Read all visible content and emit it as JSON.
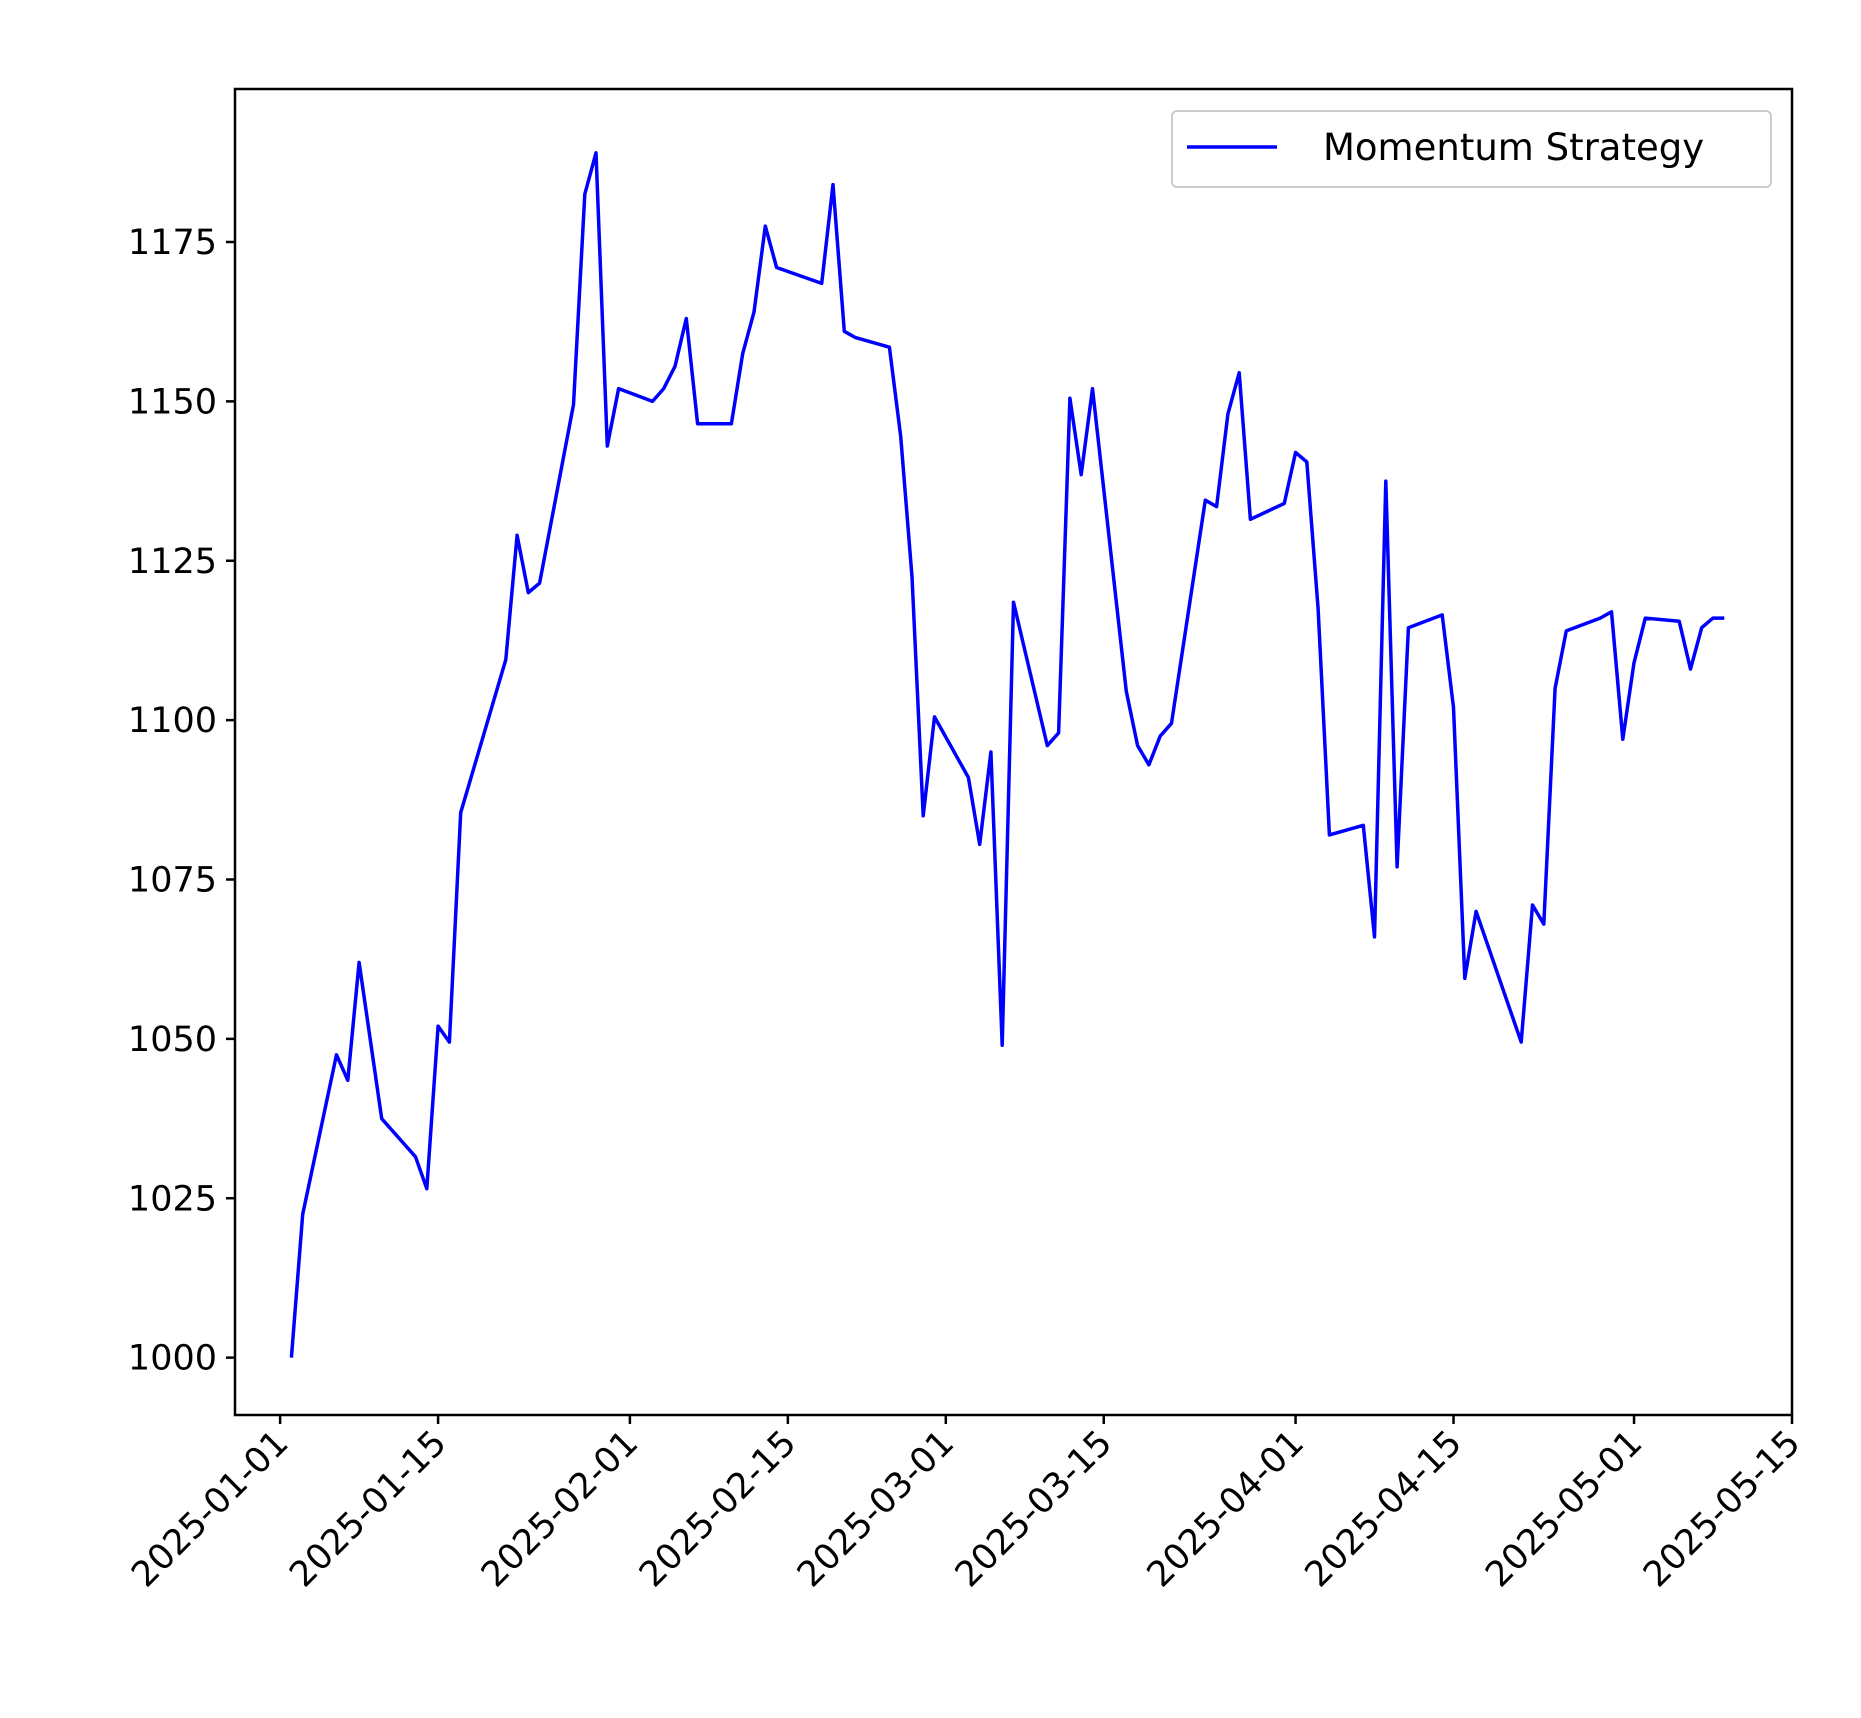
{
  "chart_data": {
    "type": "line",
    "title": "",
    "xlabel": "",
    "ylabel": "",
    "grid": false,
    "legend_position": "top-right",
    "xlim": [
      "2024-12-28",
      "2025-05-15"
    ],
    "ylim": [
      991,
      1199
    ],
    "y_ticks": [
      1000,
      1025,
      1050,
      1075,
      1100,
      1125,
      1150,
      1175
    ],
    "x_ticks": [
      "2025-01-01",
      "2025-01-15",
      "2025-02-01",
      "2025-02-15",
      "2025-03-01",
      "2025-03-15",
      "2025-04-01",
      "2025-04-15",
      "2025-05-01",
      "2025-05-15"
    ],
    "series": [
      {
        "name": "Momentum Strategy",
        "color": "#0000ff",
        "points": [
          [
            "2025-01-02",
            1000.0
          ],
          [
            "2025-01-03",
            1022.5
          ],
          [
            "2025-01-06",
            1047.5
          ],
          [
            "2025-01-07",
            1043.5
          ],
          [
            "2025-01-08",
            1062.0
          ],
          [
            "2025-01-10",
            1037.5
          ],
          [
            "2025-01-13",
            1031.5
          ],
          [
            "2025-01-14",
            1026.5
          ],
          [
            "2025-01-15",
            1052.0
          ],
          [
            "2025-01-16",
            1049.5
          ],
          [
            "2025-01-17",
            1085.5
          ],
          [
            "2025-01-21",
            1109.5
          ],
          [
            "2025-01-22",
            1129.0
          ],
          [
            "2025-01-23",
            1120.0
          ],
          [
            "2025-01-24",
            1121.5
          ],
          [
            "2025-01-27",
            1149.5
          ],
          [
            "2025-01-28",
            1182.5
          ],
          [
            "2025-01-29",
            1189.0
          ],
          [
            "2025-01-30",
            1143.0
          ],
          [
            "2025-01-31",
            1152.0
          ],
          [
            "2025-02-03",
            1150.0
          ],
          [
            "2025-02-04",
            1152.0
          ],
          [
            "2025-02-05",
            1155.5
          ],
          [
            "2025-02-06",
            1163.0
          ],
          [
            "2025-02-07",
            1146.5
          ],
          [
            "2025-02-10",
            1146.5
          ],
          [
            "2025-02-11",
            1157.5
          ],
          [
            "2025-02-12",
            1164.0
          ],
          [
            "2025-02-13",
            1177.5
          ],
          [
            "2025-02-14",
            1171.0
          ],
          [
            "2025-02-18",
            1168.5
          ],
          [
            "2025-02-19",
            1184.0
          ],
          [
            "2025-02-20",
            1161.0
          ],
          [
            "2025-02-21",
            1160.0
          ],
          [
            "2025-02-24",
            1158.5
          ],
          [
            "2025-02-25",
            1144.5
          ],
          [
            "2025-02-26",
            1122.5
          ],
          [
            "2025-02-27",
            1085.0
          ],
          [
            "2025-02-28",
            1100.5
          ],
          [
            "2025-03-03",
            1091.0
          ],
          [
            "2025-03-04",
            1080.5
          ],
          [
            "2025-03-05",
            1095.0
          ],
          [
            "2025-03-06",
            1049.0
          ],
          [
            "2025-03-07",
            1118.5
          ],
          [
            "2025-03-10",
            1096.0
          ],
          [
            "2025-03-11",
            1098.0
          ],
          [
            "2025-03-12",
            1150.5
          ],
          [
            "2025-03-13",
            1138.5
          ],
          [
            "2025-03-14",
            1152.0
          ],
          [
            "2025-03-17",
            1104.5
          ],
          [
            "2025-03-18",
            1096.0
          ],
          [
            "2025-03-19",
            1093.0
          ],
          [
            "2025-03-20",
            1097.5
          ],
          [
            "2025-03-21",
            1099.5
          ],
          [
            "2025-03-24",
            1134.5
          ],
          [
            "2025-03-25",
            1133.5
          ],
          [
            "2025-03-26",
            1148.0
          ],
          [
            "2025-03-27",
            1154.5
          ],
          [
            "2025-03-28",
            1131.5
          ],
          [
            "2025-03-31",
            1134.0
          ],
          [
            "2025-04-01",
            1142.0
          ],
          [
            "2025-04-02",
            1140.5
          ],
          [
            "2025-04-03",
            1117.5
          ],
          [
            "2025-04-04",
            1082.0
          ],
          [
            "2025-04-07",
            1083.5
          ],
          [
            "2025-04-08",
            1066.0
          ],
          [
            "2025-04-09",
            1137.5
          ],
          [
            "2025-04-10",
            1077.0
          ],
          [
            "2025-04-11",
            1114.5
          ],
          [
            "2025-04-14",
            1116.5
          ],
          [
            "2025-04-15",
            1102.0
          ],
          [
            "2025-04-16",
            1059.5
          ],
          [
            "2025-04-17",
            1070.0
          ],
          [
            "2025-04-21",
            1049.5
          ],
          [
            "2025-04-22",
            1071.0
          ],
          [
            "2025-04-23",
            1068.0
          ],
          [
            "2025-04-24",
            1105.0
          ],
          [
            "2025-04-25",
            1114.0
          ],
          [
            "2025-04-28",
            1116.0
          ],
          [
            "2025-04-29",
            1117.0
          ],
          [
            "2025-04-30",
            1097.0
          ],
          [
            "2025-05-01",
            1109.0
          ],
          [
            "2025-05-02",
            1116.0
          ],
          [
            "2025-05-05",
            1115.5
          ],
          [
            "2025-05-06",
            1108.0
          ],
          [
            "2025-05-07",
            1114.5
          ],
          [
            "2025-05-08",
            1116.0
          ],
          [
            "2025-05-09",
            1116.0
          ]
        ]
      }
    ]
  }
}
